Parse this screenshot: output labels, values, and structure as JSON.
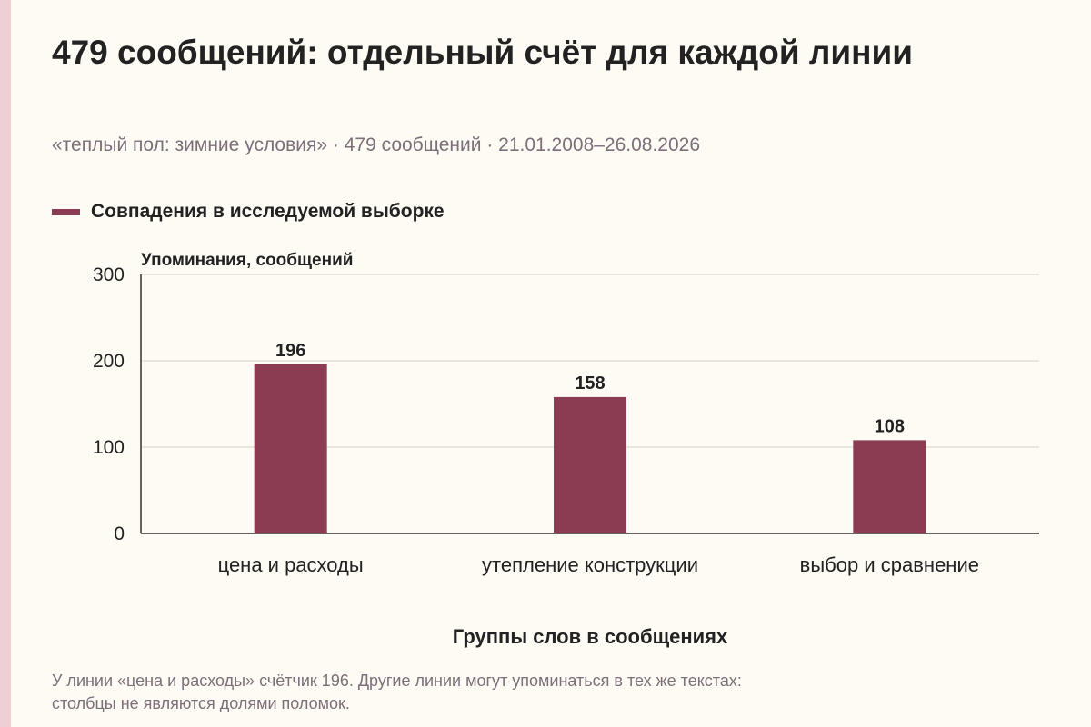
{
  "title": "479 сообщений: отдельный счёт для каждой линии",
  "subtitle": "«теплый пол: зимние условия» · 479 сообщений · 21.01.2008–26.08.2026",
  "footnote": {
    "line1": "У линии «цена и расходы» счётчик 196. Другие линии могут упоминаться в тех же текстах:",
    "line2": "столбцы не являются долями поломок."
  },
  "colors": {
    "bar": "#8b3c53",
    "background": "#fdfbf4",
    "accent_strip": "#efcfd6",
    "muted_text": "#7d6f7a",
    "grid": "#d6d2c8"
  },
  "chart_data": {
    "type": "bar",
    "categories": [
      "цена и расходы",
      "утепление конструкции",
      "выбор и сравнение"
    ],
    "series": [
      {
        "name": "Совпадения в исследуемой выборке",
        "values": [
          196,
          158,
          108
        ]
      }
    ],
    "ylabel": "Упоминания, сообщений",
    "xlabel": "Группы слов в сообщениях",
    "ylim": [
      0,
      300
    ],
    "yticks": [
      0,
      100,
      200,
      300
    ],
    "grid": true,
    "legend_position": "top-left",
    "data_labels": true
  }
}
